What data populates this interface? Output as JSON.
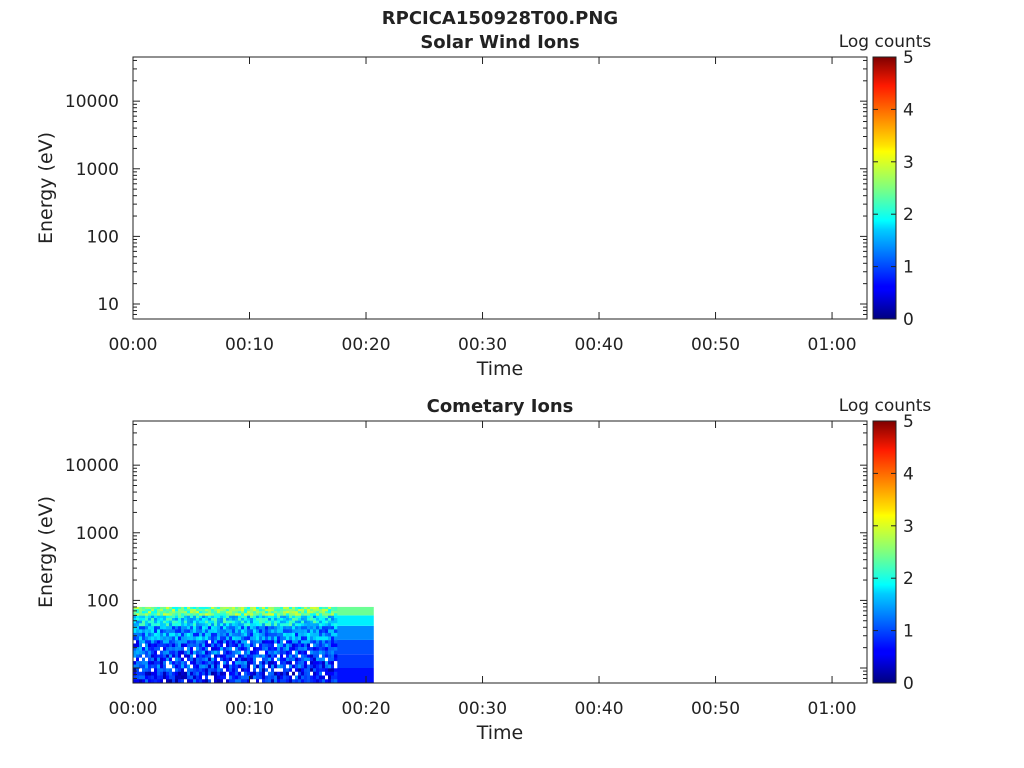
{
  "figure_title": "RPCICA150928T00.PNG",
  "chart_data": [
    {
      "type": "heatmap",
      "title": "Solar Wind Ions",
      "xlabel": "Time",
      "ylabel": "Energy (eV)",
      "yscale": "log",
      "ylim": [
        6,
        45000
      ],
      "xlim": [
        "00:00",
        "01:03"
      ],
      "x_ticks": [
        "00:00",
        "00:10",
        "00:20",
        "00:30",
        "00:40",
        "00:50",
        "01:00"
      ],
      "y_ticks": [
        "10",
        "100",
        "1000",
        "10000"
      ],
      "colorbar": {
        "label": "Log counts",
        "range": [
          0,
          5
        ],
        "ticks": [
          "0",
          "1",
          "2",
          "3",
          "4",
          "5"
        ],
        "colormap": "jet"
      },
      "data_coverage": null,
      "grid": false
    },
    {
      "type": "heatmap",
      "title": "Cometary Ions",
      "xlabel": "Time",
      "ylabel": "Energy (eV)",
      "yscale": "log",
      "ylim": [
        6,
        45000
      ],
      "xlim": [
        "00:00",
        "01:03"
      ],
      "x_ticks": [
        "00:00",
        "00:10",
        "00:20",
        "00:30",
        "00:40",
        "00:50",
        "01:00"
      ],
      "y_ticks": [
        "10",
        "100",
        "1000",
        "10000"
      ],
      "colorbar": {
        "label": "Log counts",
        "range": [
          0,
          5
        ],
        "ticks": [
          "0",
          "1",
          "2",
          "3",
          "4",
          "5"
        ],
        "colormap": "jet"
      },
      "data_coverage": {
        "time_start": "00:00",
        "time_end": "00:20:40",
        "energy_min": 6,
        "energy_max": 80,
        "energy_bands_log_counts": [
          {
            "energy_low": 6,
            "energy_high": 10,
            "log_counts": 0.7
          },
          {
            "energy_low": 10,
            "energy_high": 16,
            "log_counts": 0.9
          },
          {
            "energy_low": 16,
            "energy_high": 26,
            "log_counts": 1.0
          },
          {
            "energy_low": 26,
            "energy_high": 42,
            "log_counts": 1.3
          },
          {
            "energy_low": 42,
            "energy_high": 60,
            "log_counts": 1.8
          },
          {
            "energy_low": 60,
            "energy_high": 80,
            "log_counts": 2.4
          }
        ]
      },
      "grid": false
    }
  ]
}
